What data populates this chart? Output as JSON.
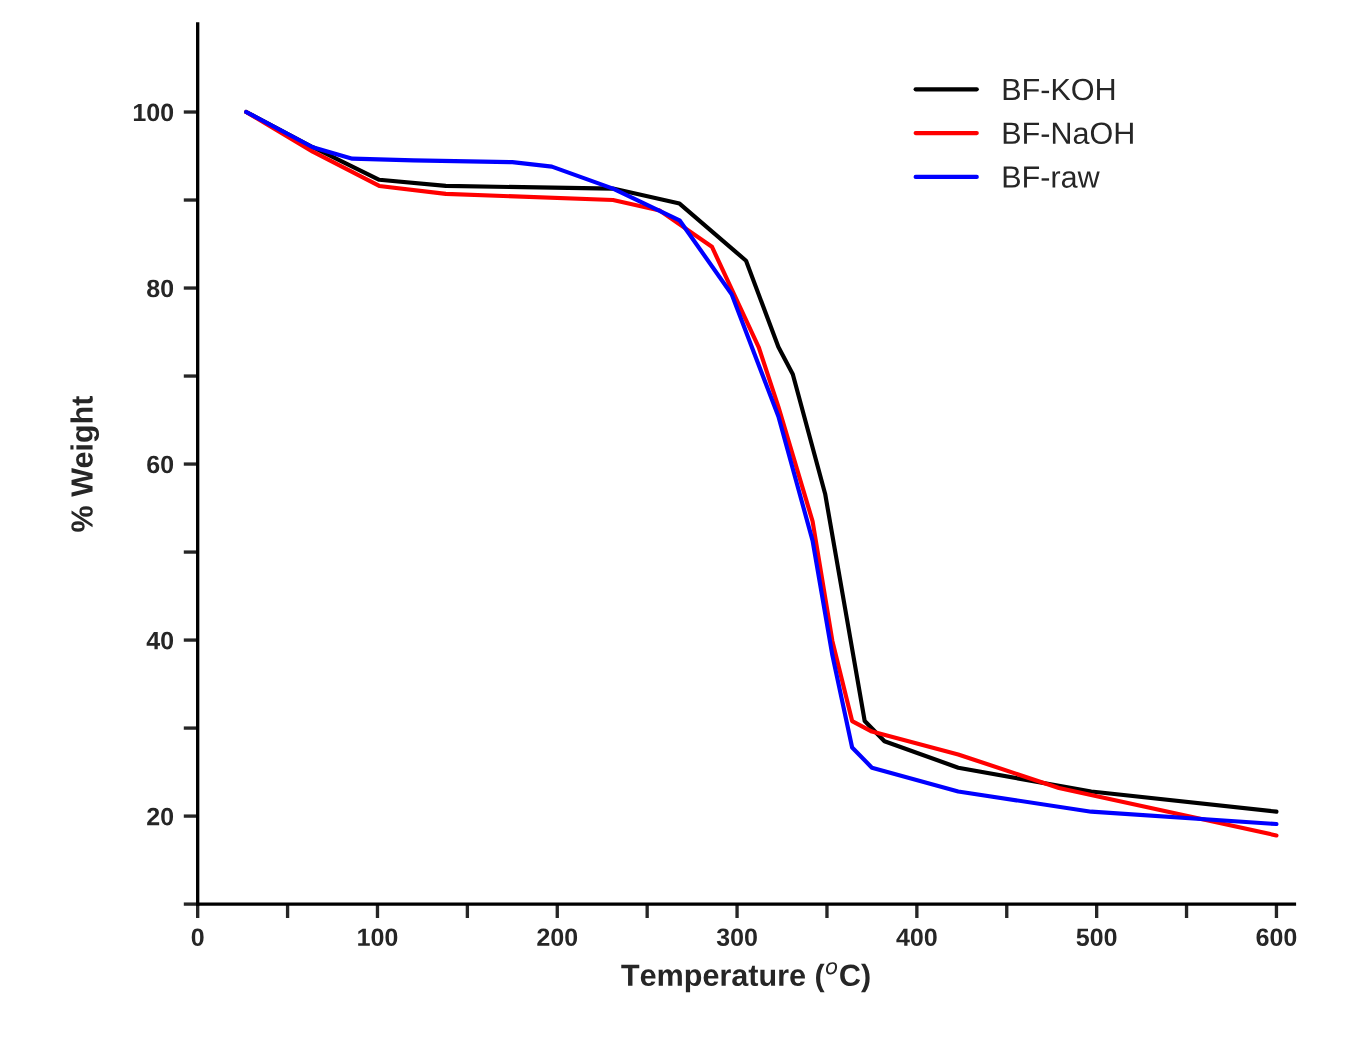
{
  "chart_data": {
    "type": "line",
    "xlabel": "Temperature ($^{o}$C)",
    "ylabel": "% Weight",
    "xlim": [
      0,
      610
    ],
    "ylim": [
      10,
      110
    ],
    "xticks": [
      0,
      {
        "value": 50,
        "label": null
      },
      100,
      {
        "value": 150,
        "label": null
      },
      200,
      {
        "value": 250,
        "label": null
      },
      300,
      {
        "value": 350,
        "label": null
      },
      400,
      {
        "value": 450,
        "label": null
      },
      500,
      {
        "value": 550,
        "label": null
      },
      600
    ],
    "yticks": [
      {
        "value": 10,
        "label": null
      },
      20,
      {
        "value": 30,
        "label": null
      },
      40,
      {
        "value": 50,
        "label": null
      },
      60,
      {
        "value": 70,
        "label": null
      },
      80,
      {
        "value": 90,
        "label": null
      },
      100
    ],
    "legend": "top right",
    "grid": false,
    "marker": "none",
    "line_style": "solid",
    "series": [
      {
        "name": "BF-KOH",
        "color": "#000000",
        "x": [
          27,
          64,
          101,
          138,
          231,
          268,
          305,
          323,
          331,
          349,
          360,
          371,
          382,
          423,
          497,
          600
        ],
        "values": [
          100,
          96,
          92.3,
          91.6,
          91.3,
          89.6,
          83.1,
          73.3,
          70.2,
          56.6,
          43.7,
          30.8,
          28.5,
          25.5,
          22.8,
          20.5
        ]
      },
      {
        "name": "BF-NaOH",
        "color": "#ff0000",
        "x": [
          27,
          64,
          101,
          138,
          231,
          257,
          286,
          312,
          323,
          342,
          353,
          364,
          375,
          423,
          479,
          600
        ],
        "values": [
          100,
          95.5,
          91.6,
          90.7,
          90.0,
          88.8,
          84.7,
          73.3,
          66.5,
          53.5,
          39.9,
          30.8,
          29.6,
          27,
          23.2,
          17.8
        ]
      },
      {
        "name": "BF-raw",
        "color": "#0000ff",
        "x": [
          27,
          64,
          86,
          120,
          175,
          197,
          231,
          268,
          297,
          323,
          342,
          353,
          364,
          375,
          423,
          497,
          600
        ],
        "values": [
          100,
          96,
          94.7,
          94.5,
          94.3,
          93.8,
          91.3,
          87.7,
          79.3,
          65.4,
          51.3,
          38.3,
          27.8,
          25.5,
          22.8,
          20.5,
          19.1
        ]
      }
    ]
  }
}
